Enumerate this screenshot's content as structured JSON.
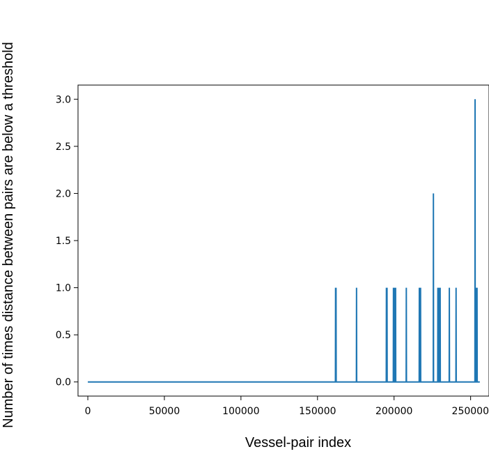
{
  "chart_data": {
    "type": "line",
    "title": "",
    "xlabel": "Vessel-pair index",
    "ylabel": "Number of times distance between pairs are below a threshold",
    "xlim": [
      -6400,
      262000
    ],
    "ylim": [
      -0.15,
      3.15
    ],
    "xticks": [
      0,
      50000,
      100000,
      150000,
      200000,
      250000
    ],
    "xtick_labels": [
      "0",
      "50000",
      "100000",
      "150000",
      "200000",
      "250000"
    ],
    "yticks": [
      0.0,
      0.5,
      1.0,
      1.5,
      2.0,
      2.5,
      3.0
    ],
    "ytick_labels": [
      "0.0",
      "0.5",
      "1.0",
      "1.5",
      "2.0",
      "2.5",
      "3.0"
    ],
    "grid": false,
    "series": [
      {
        "color": "#1f77b4",
        "x_range": [
          0,
          256000
        ],
        "baseline": 0,
        "spikes": [
          {
            "x": 161800,
            "y": 1
          },
          {
            "x": 162100,
            "y": 1
          },
          {
            "x": 175500,
            "y": 1
          },
          {
            "x": 195000,
            "y": 1
          },
          {
            "x": 195400,
            "y": 1
          },
          {
            "x": 199600,
            "y": 1
          },
          {
            "x": 200200,
            "y": 1
          },
          {
            "x": 201000,
            "y": 1
          },
          {
            "x": 208000,
            "y": 1
          },
          {
            "x": 216500,
            "y": 1
          },
          {
            "x": 217300,
            "y": 1
          },
          {
            "x": 225700,
            "y": 2
          },
          {
            "x": 228600,
            "y": 1
          },
          {
            "x": 229500,
            "y": 1
          },
          {
            "x": 230100,
            "y": 1
          },
          {
            "x": 236100,
            "y": 1
          },
          {
            "x": 240500,
            "y": 1
          },
          {
            "x": 252900,
            "y": 3
          },
          {
            "x": 253600,
            "y": 1
          },
          {
            "x": 254200,
            "y": 1
          }
        ]
      }
    ]
  }
}
